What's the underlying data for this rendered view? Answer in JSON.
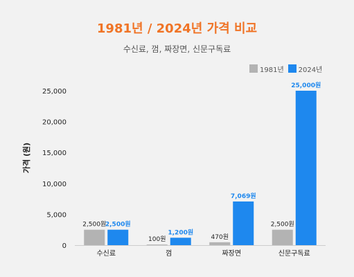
{
  "chart_data": {
    "type": "bar",
    "title": "1981년 / 2024년 가격 비교",
    "subtitle": "수신료, 껌, 짜장면, 신문구독료",
    "ylabel": "가격 (원)",
    "xlabel": "",
    "categories": [
      "수신료",
      "껌",
      "짜장면",
      "신문구독료"
    ],
    "series": [
      {
        "name": "1981년",
        "color": "#b3b3b3",
        "values": [
          2500,
          100,
          470,
          2500
        ],
        "labels": [
          "2,500원",
          "100원",
          "470원",
          "2,500원"
        ]
      },
      {
        "name": "2024년",
        "color": "#1e88ee",
        "values": [
          2500,
          1200,
          7069,
          25000
        ],
        "labels": [
          "2,500원",
          "1,200원",
          "7,069원",
          "25,000원"
        ]
      }
    ],
    "ylim": [
      0,
      25000
    ],
    "yticks": [
      0,
      5000,
      10000,
      15000,
      20000,
      25000
    ],
    "ytick_labels": [
      "0",
      "5,000",
      "10,000",
      "15,000",
      "20,000",
      "25,000"
    ],
    "grid": false,
    "legend_position": "top-right"
  }
}
